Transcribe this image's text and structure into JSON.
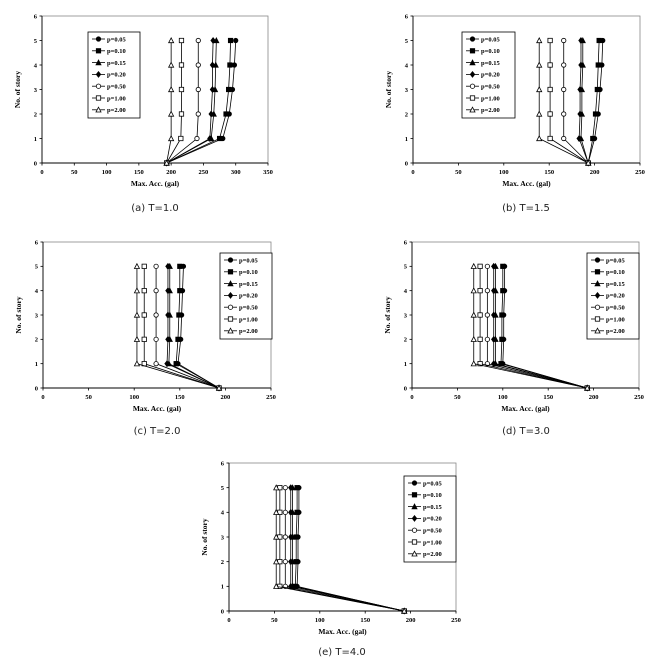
{
  "chart_data": [
    {
      "type": "line",
      "caption": "(a) T=1.0",
      "xlabel": "Max. Acc. (gal)",
      "ylabel": "No. of story",
      "xlim": [
        0,
        350
      ],
      "ylim": [
        0,
        6
      ],
      "xticks": [
        0,
        50,
        100,
        150,
        200,
        250,
        300,
        350
      ],
      "yticks": [
        0,
        1,
        2,
        3,
        4,
        5,
        6
      ],
      "legend_position": "top-left",
      "y": [
        0,
        1,
        2,
        3,
        4,
        5
      ],
      "series": [
        {
          "name": "p=0.05",
          "marker": "filled-circle",
          "x": [
            193,
            280,
            290,
            295,
            298,
            300
          ]
        },
        {
          "name": "p=0.10",
          "marker": "filled-square",
          "x": [
            193,
            275,
            285,
            289,
            291,
            292
          ]
        },
        {
          "name": "p=0.15",
          "marker": "filled-triangle",
          "x": [
            193,
            262,
            266,
            268,
            269,
            270
          ]
        },
        {
          "name": "p=0.20",
          "marker": "filled-diamond",
          "x": [
            193,
            260,
            262,
            264,
            264,
            265
          ]
        },
        {
          "name": "p=0.50",
          "marker": "open-circle",
          "x": [
            193,
            240,
            242,
            242,
            242,
            242
          ]
        },
        {
          "name": "p=1.00",
          "marker": "open-square",
          "x": [
            193,
            215,
            216,
            216,
            216,
            216
          ]
        },
        {
          "name": "p=2.00",
          "marker": "open-triangle",
          "x": [
            193,
            200,
            200,
            200,
            200,
            200
          ]
        }
      ]
    },
    {
      "type": "line",
      "caption": "(b) T=1.5",
      "xlabel": "Max. Acc. (gal)",
      "ylabel": "No. of story",
      "xlim": [
        0,
        250
      ],
      "ylim": [
        0,
        6
      ],
      "xticks": [
        0,
        50,
        100,
        150,
        200,
        250
      ],
      "yticks": [
        0,
        1,
        2,
        3,
        4,
        5,
        6
      ],
      "legend_position": "top-left",
      "y": [
        0,
        1,
        2,
        3,
        4,
        5
      ],
      "series": [
        {
          "name": "p=0.05",
          "marker": "filled-circle",
          "x": [
            193,
            200,
            204,
            206,
            208,
            209
          ]
        },
        {
          "name": "p=0.10",
          "marker": "filled-square",
          "x": [
            193,
            198,
            201,
            203,
            204,
            205
          ]
        },
        {
          "name": "p=0.15",
          "marker": "filled-triangle",
          "x": [
            193,
            185,
            186,
            186,
            187,
            187
          ]
        },
        {
          "name": "p=0.20",
          "marker": "filled-diamond",
          "x": [
            193,
            183,
            184,
            184,
            185,
            185
          ]
        },
        {
          "name": "p=0.50",
          "marker": "open-circle",
          "x": [
            193,
            166,
            166,
            166,
            166,
            166
          ]
        },
        {
          "name": "p=1.00",
          "marker": "open-square",
          "x": [
            193,
            151,
            151,
            151,
            151,
            151
          ]
        },
        {
          "name": "p=2.00",
          "marker": "open-triangle",
          "x": [
            193,
            139,
            139,
            139,
            139,
            139
          ]
        }
      ]
    },
    {
      "type": "line",
      "caption": "(c) T=2.0",
      "xlabel": "Max. Acc. (gal)",
      "ylabel": "No. of story",
      "xlim": [
        0,
        250
      ],
      "ylim": [
        0,
        6
      ],
      "xticks": [
        0,
        50,
        100,
        150,
        200,
        250
      ],
      "yticks": [
        0,
        1,
        2,
        3,
        4,
        5,
        6
      ],
      "legend_position": "top-right",
      "y": [
        0,
        1,
        2,
        3,
        4,
        5
      ],
      "series": [
        {
          "name": "p=0.05",
          "marker": "filled-circle",
          "x": [
            193,
            148,
            151,
            152,
            153,
            154
          ]
        },
        {
          "name": "p=0.10",
          "marker": "filled-square",
          "x": [
            193,
            146,
            148,
            149,
            150,
            150
          ]
        },
        {
          "name": "p=0.15",
          "marker": "filled-triangle",
          "x": [
            193,
            138,
            139,
            139,
            139,
            139
          ]
        },
        {
          "name": "p=0.20",
          "marker": "filled-diamond",
          "x": [
            193,
            136,
            137,
            137,
            137,
            137
          ]
        },
        {
          "name": "p=0.50",
          "marker": "open-circle",
          "x": [
            193,
            124,
            124,
            124,
            124,
            124
          ]
        },
        {
          "name": "p=1.00",
          "marker": "open-square",
          "x": [
            193,
            111,
            111,
            111,
            111,
            111
          ]
        },
        {
          "name": "p=2.00",
          "marker": "open-triangle",
          "x": [
            193,
            103,
            103,
            103,
            103,
            103
          ]
        }
      ]
    },
    {
      "type": "line",
      "caption": "(d) T=3.0",
      "xlabel": "Max. Acc. (gal)",
      "ylabel": "No. of story",
      "xlim": [
        0,
        250
      ],
      "ylim": [
        0,
        6
      ],
      "xticks": [
        0,
        50,
        100,
        150,
        200,
        250
      ],
      "yticks": [
        0,
        1,
        2,
        3,
        4,
        5,
        6
      ],
      "legend_position": "top-right",
      "y": [
        0,
        1,
        2,
        3,
        4,
        5
      ],
      "series": [
        {
          "name": "p=0.05",
          "marker": "filled-circle",
          "x": [
            193,
            100,
            101,
            101,
            102,
            102
          ]
        },
        {
          "name": "p=0.10",
          "marker": "filled-square",
          "x": [
            193,
            98,
            99,
            99,
            100,
            100
          ]
        },
        {
          "name": "p=0.15",
          "marker": "filled-triangle",
          "x": [
            193,
            92,
            92,
            92,
            92,
            92
          ]
        },
        {
          "name": "p=0.20",
          "marker": "filled-diamond",
          "x": [
            193,
            90,
            90,
            90,
            90,
            90
          ]
        },
        {
          "name": "p=0.50",
          "marker": "open-circle",
          "x": [
            193,
            83,
            83,
            83,
            83,
            83
          ]
        },
        {
          "name": "p=1.00",
          "marker": "open-square",
          "x": [
            193,
            75,
            75,
            75,
            75,
            75
          ]
        },
        {
          "name": "p=2.00",
          "marker": "open-triangle",
          "x": [
            193,
            68,
            68,
            68,
            68,
            68
          ]
        }
      ]
    },
    {
      "type": "line",
      "caption": "(e) T=4.0",
      "xlabel": "Max. Acc. (gal)",
      "ylabel": "No. of story",
      "xlim": [
        0,
        250
      ],
      "ylim": [
        0,
        6
      ],
      "xticks": [
        0,
        50,
        100,
        150,
        200,
        250
      ],
      "yticks": [
        0,
        1,
        2,
        3,
        4,
        5,
        6
      ],
      "legend_position": "top-right",
      "y": [
        0,
        1,
        2,
        3,
        4,
        5
      ],
      "series": [
        {
          "name": "p=0.05",
          "marker": "filled-circle",
          "x": [
            193,
            75,
            76,
            76,
            77,
            77
          ]
        },
        {
          "name": "p=0.10",
          "marker": "filled-square",
          "x": [
            193,
            73,
            74,
            74,
            75,
            75
          ]
        },
        {
          "name": "p=0.15",
          "marker": "filled-triangle",
          "x": [
            193,
            70,
            70,
            70,
            70,
            70
          ]
        },
        {
          "name": "p=0.20",
          "marker": "filled-diamond",
          "x": [
            193,
            68,
            68,
            68,
            68,
            68
          ]
        },
        {
          "name": "p=0.50",
          "marker": "open-circle",
          "x": [
            193,
            62,
            62,
            62,
            62,
            62
          ]
        },
        {
          "name": "p=1.00",
          "marker": "open-square",
          "x": [
            193,
            56,
            56,
            56,
            56,
            56
          ]
        },
        {
          "name": "p=2.00",
          "marker": "open-triangle",
          "x": [
            193,
            52,
            52,
            52,
            52,
            52
          ]
        }
      ]
    }
  ]
}
